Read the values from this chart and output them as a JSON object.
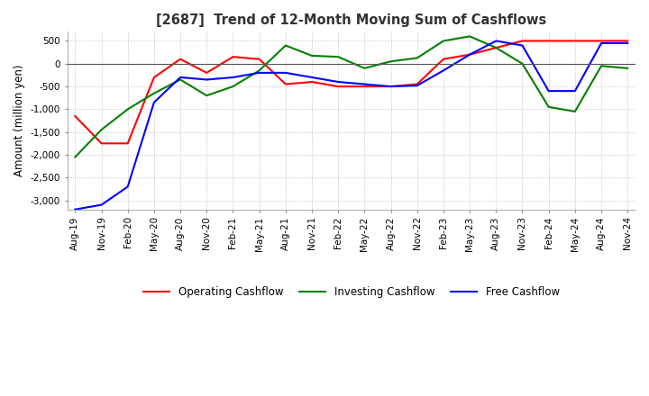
{
  "title": "[2687]  Trend of 12-Month Moving Sum of Cashflows",
  "ylabel": "Amount (million yen)",
  "ylim": [
    -3200,
    700
  ],
  "yticks": [
    500,
    0,
    -500,
    -1000,
    -1500,
    -2000,
    -2500,
    -3000
  ],
  "background_color": "#ffffff",
  "plot_bg_color": "#ffffff",
  "grid_color": "#aaaaaa",
  "legend_labels": [
    "Operating Cashflow",
    "Investing Cashflow",
    "Free Cashflow"
  ],
  "line_colors": [
    "#ff0000",
    "#008000",
    "#0000ff"
  ],
  "x_labels": [
    "Aug-19",
    "Nov-19",
    "Feb-20",
    "May-20",
    "Aug-20",
    "Nov-20",
    "Feb-21",
    "May-21",
    "Aug-21",
    "Nov-21",
    "Feb-22",
    "May-22",
    "Aug-22",
    "Nov-22",
    "Feb-23",
    "May-23",
    "Aug-23",
    "Nov-23",
    "Feb-24",
    "May-24",
    "Aug-24",
    "Nov-24"
  ],
  "operating": [
    -1150,
    -1750,
    -1750,
    -300,
    100,
    -200,
    150,
    100,
    -450,
    -400,
    -500,
    -500,
    -500,
    -450,
    100,
    200,
    350,
    500,
    500,
    500,
    500,
    500
  ],
  "investing": [
    -2050,
    -1450,
    -1000,
    -650,
    -350,
    -700,
    -500,
    -150,
    400,
    175,
    150,
    -100,
    50,
    125,
    500,
    600,
    350,
    0,
    -950,
    -1050,
    -50,
    -100
  ],
  "free": [
    -3200,
    -3100,
    -2700,
    -850,
    -300,
    -350,
    -300,
    -200,
    -200,
    -300,
    -400,
    -450,
    -500,
    -480,
    -150,
    200,
    500,
    400,
    -600,
    -600,
    450,
    450
  ]
}
